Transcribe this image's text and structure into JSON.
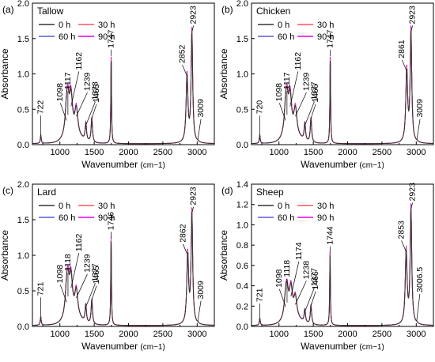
{
  "chart_data": [
    {
      "type": "line",
      "panel_label": "(a)",
      "title": "Tallow",
      "xlabel": "Wavenumber",
      "xlabel_unit": "(cm−1)",
      "ylabel": "Absorbance",
      "xlim": [
        600,
        3250
      ],
      "ylim": [
        0,
        2.0
      ],
      "xticks": [
        1000,
        1500,
        2000,
        2500,
        3000
      ],
      "yticks": [
        0.0,
        0.5,
        1.0,
        1.5,
        2.0
      ],
      "ytick_labels": [
        "0.0",
        "0.5",
        "1.0",
        "1.5",
        "2.0"
      ],
      "legend_position": "top-left",
      "series": [
        {
          "name": "0 h",
          "color": "#333333",
          "scale": 0.97
        },
        {
          "name": "30 h",
          "color": "#ff5555",
          "scale": 0.99
        },
        {
          "name": "60 h",
          "color": "#5a5ae6",
          "scale": 1.0
        },
        {
          "name": "90 h",
          "color": "#e600e6",
          "scale": 1.02
        }
      ],
      "peaks": [
        {
          "x": 722,
          "y": 0.12
        },
        {
          "x": 1098,
          "y": 0.32
        },
        {
          "x": 1117,
          "y": 0.4
        },
        {
          "x": 1162,
          "y": 0.52
        },
        {
          "x": 1239,
          "y": 0.38
        },
        {
          "x": 1378,
          "y": 0.25
        },
        {
          "x": 1465,
          "y": 0.35
        },
        {
          "x": 1747,
          "y": 1.23
        },
        {
          "x": 2852,
          "y": 0.95
        },
        {
          "x": 2923,
          "y": 1.57
        },
        {
          "x": 3009,
          "y": 0.05
        }
      ],
      "annotations": [
        {
          "text": "722",
          "x": 722,
          "y": 0.12
        },
        {
          "text": "1098",
          "x": 1098,
          "y": 0.32
        },
        {
          "text": "1117",
          "x": 1117,
          "y": 0.4
        },
        {
          "text": "1162",
          "x": 1162,
          "y": 0.52
        },
        {
          "text": "1239",
          "x": 1239,
          "y": 0.38
        },
        {
          "text": "1378",
          "x": 1378,
          "y": 0.25
        },
        {
          "text": "1465",
          "x": 1465,
          "y": 0.35
        },
        {
          "text": "1747",
          "x": 1747,
          "y": 1.23
        },
        {
          "text": "2852",
          "x": 2852,
          "y": 0.95
        },
        {
          "text": "2923",
          "x": 2923,
          "y": 1.57
        },
        {
          "text": "3009",
          "x": 3009,
          "y": 0.05
        }
      ]
    },
    {
      "type": "line",
      "panel_label": "(b)",
      "title": "Chicken",
      "xlabel": "Wavenumber",
      "xlabel_unit": "(cm−1)",
      "ylabel": "Absorbance",
      "xlim": [
        600,
        3250
      ],
      "ylim": [
        0,
        2.0
      ],
      "xticks": [
        1000,
        1500,
        2000,
        2500,
        3000
      ],
      "yticks": [
        0.0,
        0.5,
        1.0,
        1.5,
        2.0
      ],
      "ytick_labels": [
        "0.0",
        "0.5",
        "1.0",
        "1.5",
        "2.0"
      ],
      "legend_position": "top-left",
      "series": [
        {
          "name": "0 h",
          "color": "#333333",
          "scale": 0.97
        },
        {
          "name": "30 h",
          "color": "#ff5555",
          "scale": 0.99
        },
        {
          "name": "60 h",
          "color": "#5a5ae6",
          "scale": 1.0
        },
        {
          "name": "90 h",
          "color": "#e600e6",
          "scale": 1.02
        }
      ],
      "peaks": [
        {
          "x": 720,
          "y": 0.12
        },
        {
          "x": 1098,
          "y": 0.32
        },
        {
          "x": 1117,
          "y": 0.4
        },
        {
          "x": 1162,
          "y": 0.52
        },
        {
          "x": 1239,
          "y": 0.38
        },
        {
          "x": 1377,
          "y": 0.25
        },
        {
          "x": 1466,
          "y": 0.35
        },
        {
          "x": 1747,
          "y": 1.23
        },
        {
          "x": 2861,
          "y": 1.02
        },
        {
          "x": 2923,
          "y": 1.57
        },
        {
          "x": 3009,
          "y": 0.05
        }
      ],
      "annotations": [
        {
          "text": "720",
          "x": 720,
          "y": 0.12
        },
        {
          "text": "1098",
          "x": 1098,
          "y": 0.32
        },
        {
          "text": "1117",
          "x": 1117,
          "y": 0.4
        },
        {
          "text": "1162",
          "x": 1162,
          "y": 0.52
        },
        {
          "text": "1239",
          "x": 1239,
          "y": 0.38
        },
        {
          "text": "1377",
          "x": 1377,
          "y": 0.25
        },
        {
          "text": "1466",
          "x": 1466,
          "y": 0.35
        },
        {
          "text": "1747",
          "x": 1747,
          "y": 1.23
        },
        {
          "text": "2861",
          "x": 2861,
          "y": 1.02
        },
        {
          "text": "2923",
          "x": 2923,
          "y": 1.57
        },
        {
          "text": "3009",
          "x": 3009,
          "y": 0.05
        }
      ]
    },
    {
      "type": "line",
      "panel_label": "(c)",
      "title": "Lard",
      "xlabel": "Wavenumber",
      "xlabel_unit": "(cm−1)",
      "ylabel": "Absorbance",
      "xlim": [
        600,
        3250
      ],
      "ylim": [
        0,
        2.0
      ],
      "xticks": [
        1000,
        1500,
        2000,
        2500,
        3000
      ],
      "yticks": [
        0.0,
        0.5,
        1.0,
        1.5,
        2.0
      ],
      "ytick_labels": [
        "0.0",
        "0.5",
        "1.0",
        "1.5",
        "2.0"
      ],
      "legend_position": "top-left",
      "series": [
        {
          "name": "0 h",
          "color": "#333333",
          "scale": 0.97
        },
        {
          "name": "30 h",
          "color": "#ff5555",
          "scale": 0.99
        },
        {
          "name": "60 h",
          "color": "#5a5ae6",
          "scale": 1.0
        },
        {
          "name": "90 h",
          "color": "#e600e6",
          "scale": 1.02
        }
      ],
      "peaks": [
        {
          "x": 721,
          "y": 0.12
        },
        {
          "x": 1098,
          "y": 0.32
        },
        {
          "x": 1118,
          "y": 0.4
        },
        {
          "x": 1162,
          "y": 0.52
        },
        {
          "x": 1239,
          "y": 0.38
        },
        {
          "x": 1377,
          "y": 0.25
        },
        {
          "x": 1465,
          "y": 0.35
        },
        {
          "x": 1746,
          "y": 1.22
        },
        {
          "x": 2862,
          "y": 0.98
        },
        {
          "x": 2923,
          "y": 1.57
        },
        {
          "x": 3009,
          "y": 0.05
        }
      ],
      "annotations": [
        {
          "text": "721",
          "x": 721,
          "y": 0.12
        },
        {
          "text": "1098",
          "x": 1098,
          "y": 0.32
        },
        {
          "text": "1118",
          "x": 1118,
          "y": 0.4
        },
        {
          "text": "1162",
          "x": 1162,
          "y": 0.52
        },
        {
          "text": "1239",
          "x": 1239,
          "y": 0.38
        },
        {
          "text": "1377",
          "x": 1377,
          "y": 0.25
        },
        {
          "text": "1465",
          "x": 1465,
          "y": 0.35
        },
        {
          "text": "1746",
          "x": 1746,
          "y": 1.22
        },
        {
          "text": "2862",
          "x": 2862,
          "y": 0.98
        },
        {
          "text": "2923",
          "x": 2923,
          "y": 1.57
        },
        {
          "text": "3009",
          "x": 3009,
          "y": 0.05
        }
      ]
    },
    {
      "type": "line",
      "panel_label": "(d)",
      "title": "Sheep",
      "xlabel": "Wavenumber",
      "xlabel_unit": "(cm−1)",
      "ylabel": "Absorbance",
      "xlim": [
        600,
        3250
      ],
      "ylim": [
        0,
        1.4
      ],
      "xticks": [
        1000,
        1500,
        2000,
        2500,
        3000
      ],
      "yticks": [
        0.0,
        0.2,
        0.4,
        0.6,
        0.8,
        1.0,
        1.2,
        1.4
      ],
      "ytick_labels": [
        "0.0",
        "0.2",
        "0.4",
        "0.6",
        "0.8",
        "1.0",
        "1.2",
        "1.4"
      ],
      "legend_position": "top-left",
      "series": [
        {
          "name": "0 h",
          "color": "#333333",
          "scale": 0.97
        },
        {
          "name": "30 h",
          "color": "#ff5555",
          "scale": 0.99
        },
        {
          "name": "60 h",
          "color": "#5a5ae6",
          "scale": 1.0
        },
        {
          "name": "90 h",
          "color": "#e600e6",
          "scale": 1.02
        }
      ],
      "peaks": [
        {
          "x": 721,
          "y": 0.07
        },
        {
          "x": 1098,
          "y": 0.18
        },
        {
          "x": 1118,
          "y": 0.22
        },
        {
          "x": 1174,
          "y": 0.28
        },
        {
          "x": 1238,
          "y": 0.2
        },
        {
          "x": 1377,
          "y": 0.13
        },
        {
          "x": 1466,
          "y": 0.19
        },
        {
          "x": 1744,
          "y": 0.71
        },
        {
          "x": 2853,
          "y": 0.72
        },
        {
          "x": 2923,
          "y": 1.14
        },
        {
          "x": 3006.5,
          "y": 0.04
        }
      ],
      "annotations": [
        {
          "text": "721",
          "x": 721,
          "y": 0.07
        },
        {
          "text": "1098",
          "x": 1098,
          "y": 0.18
        },
        {
          "text": "1118",
          "x": 1118,
          "y": 0.22
        },
        {
          "text": "1174",
          "x": 1174,
          "y": 0.28
        },
        {
          "text": "1238",
          "x": 1238,
          "y": 0.2
        },
        {
          "text": "1377",
          "x": 1377,
          "y": 0.13
        },
        {
          "text": "1466",
          "x": 1466,
          "y": 0.19
        },
        {
          "text": "1744",
          "x": 1744,
          "y": 0.71
        },
        {
          "text": "2853",
          "x": 2853,
          "y": 0.72
        },
        {
          "text": "2923",
          "x": 2923,
          "y": 1.14
        },
        {
          "text": "3006.5",
          "x": 3006.5,
          "y": 0.04
        }
      ]
    }
  ]
}
